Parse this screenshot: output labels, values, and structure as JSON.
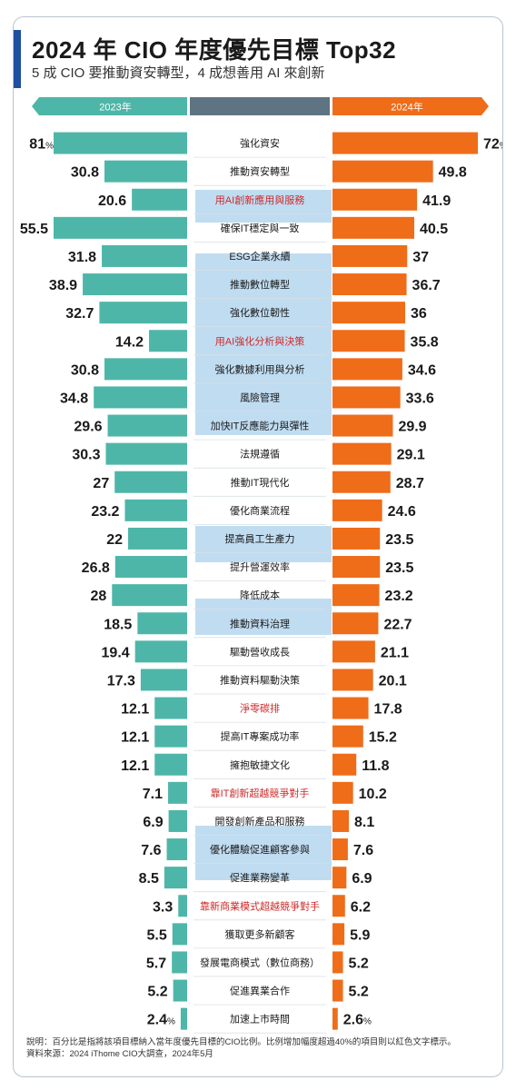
{
  "header": {
    "title": "2024 年 CIO 年度優先目標 Top32",
    "subtitle": "5 成 CIO 要推動資安轉型，4 成想善用 AI 來創新"
  },
  "footnote": {
    "note": "說明：百分比是指將該項目標納入當年度優先目標的CIO比例。比例增加幅度超過40%的項目則以紅色文字標示。",
    "source": "資料來源：2024 iThome CIO大調查，2024年5月"
  },
  "colors": {
    "bar_2023": "#4eb6a8",
    "bar_2024": "#ef6c19",
    "header_mid": "#5f7482",
    "label_normal": "#1a1a1a",
    "label_highlight": "#cf2a2a",
    "watermark": "#8dc0e6"
  },
  "chart_data": {
    "type": "bar",
    "title": "2024 年 CIO 年度優先目標 Top32",
    "legend": [
      "2023年",
      "2024年"
    ],
    "unit": "%",
    "categories": [
      "強化資安",
      "推動資安轉型",
      "用AI創新應用與服務",
      "確保IT穩定與一致",
      "ESG企業永續",
      "推動數位轉型",
      "強化數位韌性",
      "用AI強化分析與決策",
      "強化數據利用與分析",
      "風險管理",
      "加快IT反應能力與彈性",
      "法規遵循",
      "推動IT現代化",
      "優化商業流程",
      "提高員工生產力",
      "提升營運效率",
      "降低成本",
      "推動資料治理",
      "驅動營收成長",
      "推動資料驅動決策",
      "淨零碳排",
      "提高IT專案成功率",
      "擁抱敏捷文化",
      "靠IT創新超越競爭對手",
      "開發創新產品和服務",
      "優化體驗促進顧客參與",
      "促進業務變革",
      "靠新商業模式超越競爭對手",
      "獲取更多新顧客",
      "發展電商模式（數位商務）",
      "促進異業合作",
      "加速上市時間"
    ],
    "highlighted": [
      "用AI創新應用與服務",
      "用AI強化分析與決策",
      "淨零碳排",
      "靠IT創新超越競爭對手",
      "靠新商業模式超越競爭對手"
    ],
    "series": [
      {
        "name": "2023年",
        "values": [
          81,
          30.8,
          20.6,
          55.5,
          31.8,
          38.9,
          32.7,
          14.2,
          30.8,
          34.8,
          29.6,
          30.3,
          27,
          23.2,
          22,
          26.8,
          28,
          18.5,
          19.4,
          17.3,
          12.1,
          12.1,
          12.1,
          7.1,
          6.9,
          7.6,
          8.5,
          3.3,
          5.5,
          5.7,
          5.2,
          2.4
        ]
      },
      {
        "name": "2024年",
        "values": [
          72,
          49.8,
          41.9,
          40.5,
          37,
          36.7,
          36,
          35.8,
          34.6,
          33.6,
          29.9,
          29.1,
          28.7,
          24.6,
          23.5,
          23.5,
          23.2,
          22.7,
          21.1,
          20.1,
          17.8,
          15.2,
          11.8,
          10.2,
          8.1,
          7.6,
          6.9,
          6.2,
          5.9,
          5.2,
          5.2,
          2.6
        ]
      }
    ]
  }
}
